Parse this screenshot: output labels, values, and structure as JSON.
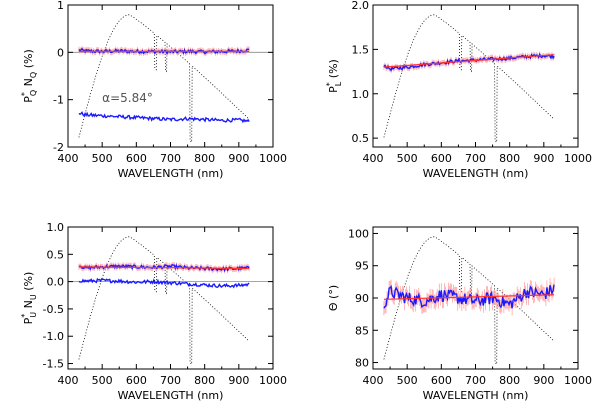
{
  "chart_data": [
    {
      "id": "pq",
      "type": "line",
      "ylabel_main": "P",
      "ylabel_sup": "*",
      "ylabel_sub": "Q",
      "ylabel_extra": "N",
      "ylabel_extra_sub": "Q",
      "ylabel_unit": "(%)",
      "xlabel": "WAVELENGTH (nm)",
      "xlim": [
        400,
        1000
      ],
      "ylim": [
        -2,
        1
      ],
      "xticks": [
        "400",
        "500",
        "600",
        "700",
        "800",
        "900",
        "1000"
      ],
      "yticks": [
        "-2",
        "-1",
        "0",
        "1"
      ],
      "zero_line": 0,
      "annotation": "α=5.84°",
      "series": [
        {
          "key": "signal",
          "color": "#1a1aff",
          "x": [
            432,
            450,
            500,
            550,
            600,
            650,
            700,
            750,
            800,
            850,
            900,
            930
          ],
          "y": [
            0.05,
            0.03,
            0.02,
            0.03,
            0.02,
            0.02,
            0.01,
            0.02,
            0.01,
            0.02,
            0.03,
            0.05
          ]
        },
        {
          "key": "fit",
          "color": "#ff3333",
          "x": [
            432,
            930
          ],
          "y": [
            0.02,
            0.02
          ]
        },
        {
          "key": "null",
          "color": "#1a1aff",
          "x": [
            432,
            450,
            500,
            550,
            600,
            650,
            700,
            750,
            800,
            850,
            900,
            930
          ],
          "y": [
            -1.28,
            -1.32,
            -1.34,
            -1.36,
            -1.38,
            -1.4,
            -1.42,
            -1.4,
            -1.42,
            -1.44,
            -1.43,
            -1.46
          ]
        }
      ]
    },
    {
      "id": "pl",
      "type": "line",
      "ylabel_main": "P",
      "ylabel_sup": "*",
      "ylabel_sub": "L",
      "ylabel_unit": "(%)",
      "xlabel": "WAVELENGTH (nm)",
      "xlim": [
        400,
        1000
      ],
      "ylim": [
        0.4,
        2.0
      ],
      "xticks": [
        "400",
        "500",
        "600",
        "700",
        "800",
        "900",
        "1000"
      ],
      "yticks": [
        "0.5",
        "1.0",
        "1.5",
        "2.0"
      ],
      "series": [
        {
          "key": "signal",
          "color": "#1a1aff",
          "x": [
            432,
            450,
            500,
            550,
            600,
            650,
            700,
            750,
            800,
            850,
            900,
            930
          ],
          "y": [
            1.32,
            1.28,
            1.3,
            1.33,
            1.35,
            1.37,
            1.38,
            1.39,
            1.4,
            1.42,
            1.43,
            1.42
          ]
        },
        {
          "key": "fit",
          "color": "#ff3333",
          "x": [
            432,
            930
          ],
          "y": [
            1.3,
            1.44
          ]
        }
      ]
    },
    {
      "id": "pu",
      "type": "line",
      "ylabel_main": "P",
      "ylabel_sup": "*",
      "ylabel_sub": "U",
      "ylabel_extra": "N",
      "ylabel_extra_sub": "U",
      "ylabel_unit": "(%)",
      "xlabel": "WAVELENGTH (nm)",
      "xlim": [
        400,
        1000
      ],
      "ylim": [
        -1.6,
        1.0
      ],
      "xticks": [
        "400",
        "500",
        "600",
        "700",
        "800",
        "900",
        "1000"
      ],
      "yticks": [
        "-1.5",
        "-1.0",
        "-0.5",
        "0.0",
        "0.5",
        "1.0"
      ],
      "zero_line": 0,
      "series": [
        {
          "key": "signal",
          "color": "#1a1aff",
          "x": [
            432,
            450,
            500,
            550,
            600,
            650,
            700,
            750,
            800,
            850,
            900,
            930
          ],
          "y": [
            0.3,
            0.25,
            0.27,
            0.28,
            0.27,
            0.26,
            0.28,
            0.25,
            0.24,
            0.23,
            0.24,
            0.25
          ]
        },
        {
          "key": "fit",
          "color": "#ff3333",
          "x": [
            432,
            930
          ],
          "y": [
            0.27,
            0.24
          ]
        },
        {
          "key": "null",
          "color": "#1a1aff",
          "x": [
            432,
            450,
            500,
            550,
            600,
            650,
            700,
            750,
            800,
            850,
            900,
            930
          ],
          "y": [
            0.02,
            0.01,
            0.02,
            0.01,
            -0.01,
            0.0,
            -0.02,
            -0.04,
            -0.06,
            -0.08,
            -0.07,
            -0.05
          ]
        }
      ]
    },
    {
      "id": "theta",
      "type": "line",
      "ylabel_main": "Θ",
      "ylabel_unit": "(°)",
      "xlabel": "WAVELENGTH (nm)",
      "xlim": [
        400,
        1000
      ],
      "ylim": [
        79,
        101
      ],
      "xticks": [
        "400",
        "500",
        "600",
        "700",
        "800",
        "900",
        "1000"
      ],
      "yticks": [
        "80",
        "85",
        "90",
        "95",
        "100"
      ],
      "series": [
        {
          "key": "signal",
          "color": "#1a1aff",
          "x": [
            432,
            450,
            500,
            550,
            600,
            650,
            700,
            750,
            800,
            850,
            900,
            930
          ],
          "y": [
            89,
            91,
            90,
            89.5,
            90.5,
            90,
            89.5,
            90,
            89,
            91,
            90.5,
            91.5
          ]
        },
        {
          "key": "fit",
          "color": "#ff3333",
          "x": [
            432,
            930
          ],
          "y": [
            89.8,
            90.5
          ]
        }
      ]
    }
  ]
}
